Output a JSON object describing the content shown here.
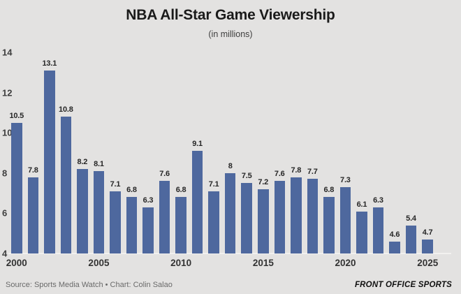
{
  "header": {
    "title": "NBA All-Star Game Viewership",
    "subtitle": "(in millions)"
  },
  "footer": {
    "source": "Source: Sports Media Watch • Chart: Colin Salao",
    "brand": "FRONT OFFICE SPORTS"
  },
  "colors": {
    "background": "#e3e2e1",
    "bar": "#4e689e",
    "baseline": "#f2f1ef",
    "title_text": "#1a1a1a",
    "tick_text": "#3f3f3f",
    "source_text": "#6a6a6a"
  },
  "chart_data": {
    "type": "bar",
    "title": "NBA All-Star Game Viewership",
    "subtitle": "(in millions)",
    "xlabel": "",
    "ylabel": "",
    "ylim": [
      4,
      14
    ],
    "yticks": [
      14,
      12,
      10,
      8,
      6,
      4
    ],
    "xticks": [
      2000,
      2005,
      2010,
      2015,
      2020,
      2025
    ],
    "grid": false,
    "legend": false,
    "categories": [
      2000,
      2001,
      2002,
      2003,
      2004,
      2005,
      2006,
      2007,
      2008,
      2009,
      2010,
      2011,
      2012,
      2013,
      2014,
      2015,
      2016,
      2017,
      2018,
      2019,
      2020,
      2021,
      2022,
      2023,
      2024,
      2025
    ],
    "values": [
      10.5,
      7.8,
      13.1,
      10.8,
      8.2,
      8.1,
      7.1,
      6.8,
      6.3,
      7.6,
      6.8,
      9.1,
      7.1,
      8,
      7.5,
      7.2,
      7.6,
      7.8,
      7.7,
      6.8,
      7.3,
      6.1,
      6.3,
      4.6,
      5.4,
      4.7
    ],
    "labels": [
      "10.5",
      "7.8",
      "13.1",
      "10.8",
      "8.2",
      "8.1",
      "7.1",
      "6.8",
      "6.3",
      "7.6",
      "6.8",
      "9.1",
      "7.1",
      "8",
      "7.5",
      "7.2",
      "7.6",
      "7.8",
      "7.7",
      "6.8",
      "7.3",
      "6.1",
      "6.3",
      "4.6",
      "5.4",
      "4.7"
    ]
  }
}
